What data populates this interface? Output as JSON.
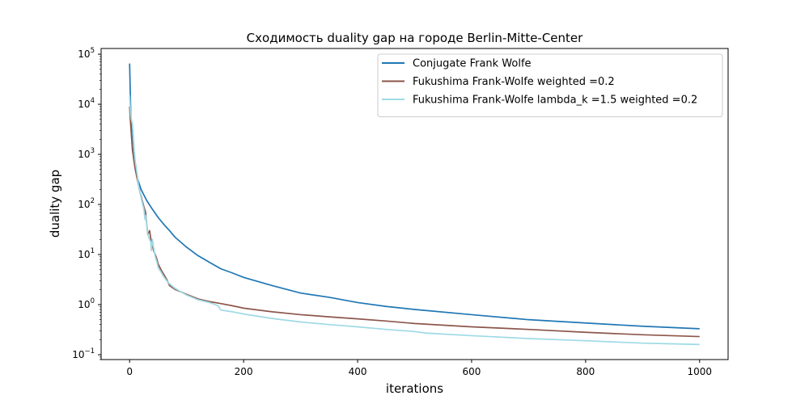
{
  "chart_data": {
    "type": "line",
    "title": "Сходимость duality gap на городе Berlin-Mitte-Center",
    "xlabel": "iterations",
    "ylabel": "duality gap",
    "xlim": [
      -50,
      1050
    ],
    "ylim": [
      0.08,
      130000
    ],
    "yscale": "log",
    "grid": false,
    "legend_position": "top-right",
    "x_ticks": [
      0,
      200,
      400,
      600,
      800,
      1000
    ],
    "x_tick_labels": [
      "0",
      "200",
      "400",
      "600",
      "800",
      "1000"
    ],
    "y_ticks": [
      0.1,
      1,
      10,
      100,
      1000,
      10000,
      100000
    ],
    "y_tick_labels": [
      {
        "base": "10",
        "exp": "−1"
      },
      {
        "base": "10",
        "exp": "0"
      },
      {
        "base": "10",
        "exp": "1"
      },
      {
        "base": "10",
        "exp": "2"
      },
      {
        "base": "10",
        "exp": "3"
      },
      {
        "base": "10",
        "exp": "4"
      },
      {
        "base": "10",
        "exp": "5"
      }
    ],
    "series": [
      {
        "name": "Conjugate Frank Wolfe",
        "color": "#1f77b4",
        "x": [
          0,
          1,
          2,
          3,
          5,
          8,
          10,
          15,
          20,
          30,
          40,
          50,
          60,
          70,
          80,
          100,
          120,
          140,
          160,
          180,
          200,
          250,
          300,
          350,
          400,
          450,
          500,
          600,
          700,
          800,
          900,
          1000
        ],
        "y": [
          65000,
          20000,
          7000,
          3500,
          1500,
          700,
          500,
          300,
          200,
          120,
          80,
          55,
          40,
          30,
          22,
          14,
          9.5,
          7,
          5.2,
          4.3,
          3.5,
          2.4,
          1.7,
          1.4,
          1.1,
          0.92,
          0.8,
          0.63,
          0.5,
          0.43,
          0.37,
          0.33
        ]
      },
      {
        "name": "Fukushima Frank-Wolfe weighted =0.2",
        "color": "#8c564b",
        "x": [
          0,
          1,
          3,
          5,
          8,
          10,
          12,
          15,
          18,
          20,
          22,
          25,
          28,
          30,
          32,
          35,
          38,
          40,
          42,
          45,
          48,
          50,
          55,
          60,
          65,
          70,
          80,
          90,
          100,
          120,
          140,
          160,
          180,
          200,
          250,
          300,
          350,
          400,
          450,
          500,
          600,
          700,
          800,
          900,
          1000
        ],
        "y": [
          9000,
          5500,
          2500,
          1200,
          700,
          500,
          380,
          260,
          180,
          150,
          120,
          90,
          70,
          40,
          25,
          30,
          18,
          15,
          12,
          10,
          8,
          6.5,
          5,
          4,
          3.2,
          2.4,
          2.0,
          1.8,
          1.6,
          1.3,
          1.15,
          1.05,
          0.95,
          0.85,
          0.72,
          0.63,
          0.57,
          0.52,
          0.47,
          0.42,
          0.36,
          0.32,
          0.28,
          0.25,
          0.23
        ]
      },
      {
        "name": "Fukushima Frank-Wolfe lambda_k =1.5 weighted =0.2",
        "color": "#9edae5",
        "x": [
          0,
          1,
          2,
          3,
          5,
          7,
          8,
          10,
          12,
          14,
          15,
          18,
          20,
          22,
          25,
          27,
          28,
          30,
          32,
          35,
          37,
          38,
          40,
          42,
          45,
          48,
          50,
          55,
          60,
          65,
          70,
          80,
          90,
          100,
          120,
          140,
          150,
          155,
          160,
          180,
          200,
          250,
          300,
          350,
          400,
          450,
          500,
          520,
          600,
          700,
          800,
          900,
          950,
          1000
        ],
        "y": [
          15000,
          9000,
          6000,
          5000,
          4000,
          2000,
          1200,
          700,
          500,
          350,
          260,
          180,
          140,
          110,
          80,
          50,
          60,
          40,
          25,
          20,
          18,
          12,
          20,
          14,
          9,
          7,
          5.5,
          4.5,
          3.6,
          3.0,
          2.6,
          2.1,
          1.8,
          1.55,
          1.25,
          1.1,
          1.0,
          0.95,
          0.78,
          0.72,
          0.65,
          0.53,
          0.45,
          0.4,
          0.36,
          0.32,
          0.29,
          0.27,
          0.24,
          0.21,
          0.19,
          0.17,
          0.165,
          0.16
        ]
      }
    ]
  }
}
